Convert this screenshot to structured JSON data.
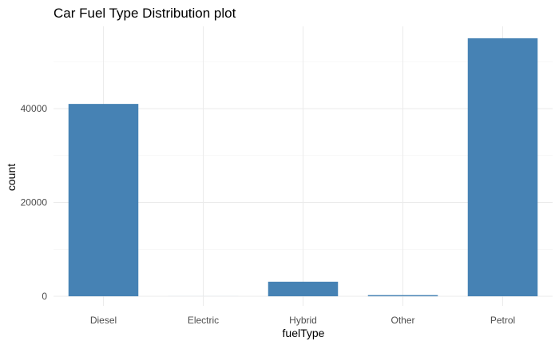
{
  "chart_data": {
    "type": "bar",
    "title": "Car Fuel Type Distribution plot",
    "xlabel": "fuelType",
    "ylabel": "count",
    "categories": [
      "Diesel",
      "Electric",
      "Hybrid",
      "Other",
      "Petrol"
    ],
    "values": [
      41000,
      6,
      3100,
      250,
      55000
    ],
    "ylim": [
      0,
      57000
    ],
    "yticks": [
      0,
      20000,
      40000
    ],
    "bar_color": "#4682B4",
    "grid": true,
    "legend": "none"
  }
}
